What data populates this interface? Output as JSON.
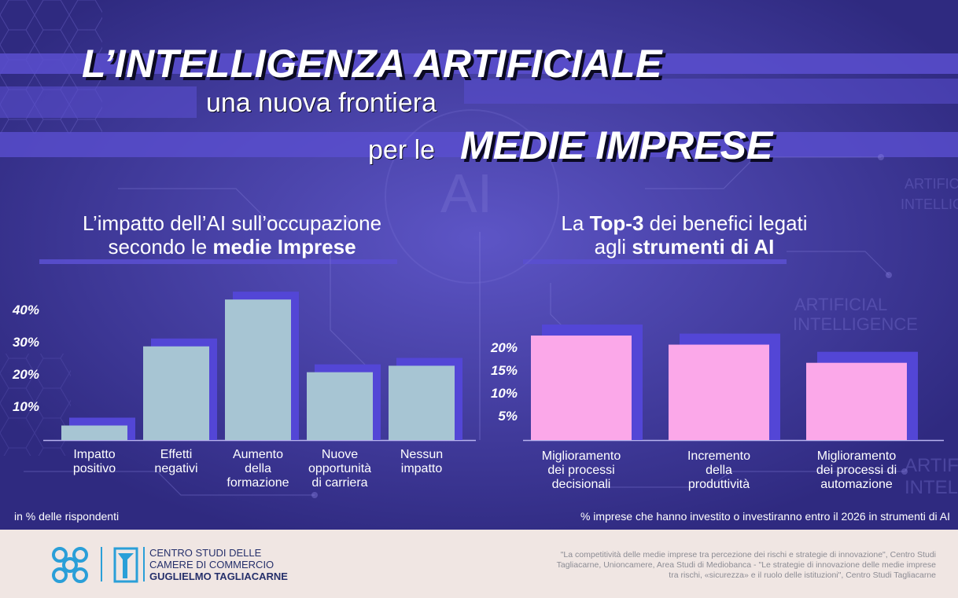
{
  "title": {
    "line1": "L’INTELLIGENZA ARTIFICIALE",
    "line2": "una nuova frontiera",
    "line3_prefix": "per le",
    "line3_main": "MEDIE IMPRESE"
  },
  "left_section": {
    "heading_line1": "L’impatto dell’AI sull’occupazione",
    "heading_line2_prefix": "secondo le ",
    "heading_line2_bold": "medie Imprese",
    "note": "in % delle rispondenti"
  },
  "right_section": {
    "heading_line1_prefix": "La ",
    "heading_line1_bold": "Top-3",
    "heading_line1_suffix": " dei benefici legati",
    "heading_line2_prefix": "agli ",
    "heading_line2_bold": "strumenti di AI",
    "note": "% imprese che hanno investito o investiranno entro il 2026 in strumenti di AI"
  },
  "chart_data": [
    {
      "type": "bar",
      "title": "L’impatto dell’AI sull’occupazione secondo le medie Imprese",
      "categories": [
        [
          "Impatto",
          "positivo"
        ],
        [
          "Effetti",
          "negativi"
        ],
        [
          "Aumento",
          "della",
          "formazione"
        ],
        [
          "Nuove",
          "opportunità",
          "di carriera"
        ],
        [
          "Nessun",
          "impatto"
        ]
      ],
      "values": [
        4.5,
        29,
        43.5,
        21,
        23
      ],
      "ylim": [
        0,
        45
      ],
      "yticks": [
        10,
        20,
        30,
        40
      ],
      "ytick_labels": [
        "10%",
        "20%",
        "30%",
        "40%"
      ],
      "color": "#a7c5d3",
      "shadow_color": "#5346d6"
    },
    {
      "type": "bar",
      "title": "La Top-3 dei benefici legati agli strumenti di AI",
      "categories": [
        [
          "Miglioramento",
          "dei processi",
          "decisionali"
        ],
        [
          "Incremento",
          "della",
          "produttività"
        ],
        [
          "Miglioramento",
          "dei processi di",
          "automazione"
        ]
      ],
      "values": [
        23,
        21,
        17
      ],
      "ylim": [
        0,
        23
      ],
      "yticks": [
        5,
        10,
        15,
        20
      ],
      "ytick_labels": [
        "5%",
        "10%",
        "15%",
        "20%"
      ],
      "color": "#fba8e9",
      "shadow_color": "#5346d6"
    }
  ],
  "footer": {
    "org_line1": "CENTRO STUDI DELLE",
    "org_line2": "CAMERE DI COMMERCIO",
    "org_line3": "GUGLIELMO TAGLIACARNE",
    "source_line1": "\"La competitività delle medie imprese tra percezione dei rischi e strategie di innovazione\", Centro Studi",
    "source_line2": "Tagliacarne, Unioncamere, Area Studi di Mediobanca - \"Le strategie di innovazione delle medie imprese",
    "source_line3": "tra rischi, «sicurezza» e il ruolo delle istituzioni\",  Centro Studi Tagliacarne"
  },
  "colors": {
    "background": "#3b3494",
    "band": "#5a4fcf",
    "left_bar": "#a7c5d3",
    "right_bar": "#fba8e9",
    "footer_bg": "#f0e6e3",
    "logo_blue": "#2a9fd8"
  }
}
